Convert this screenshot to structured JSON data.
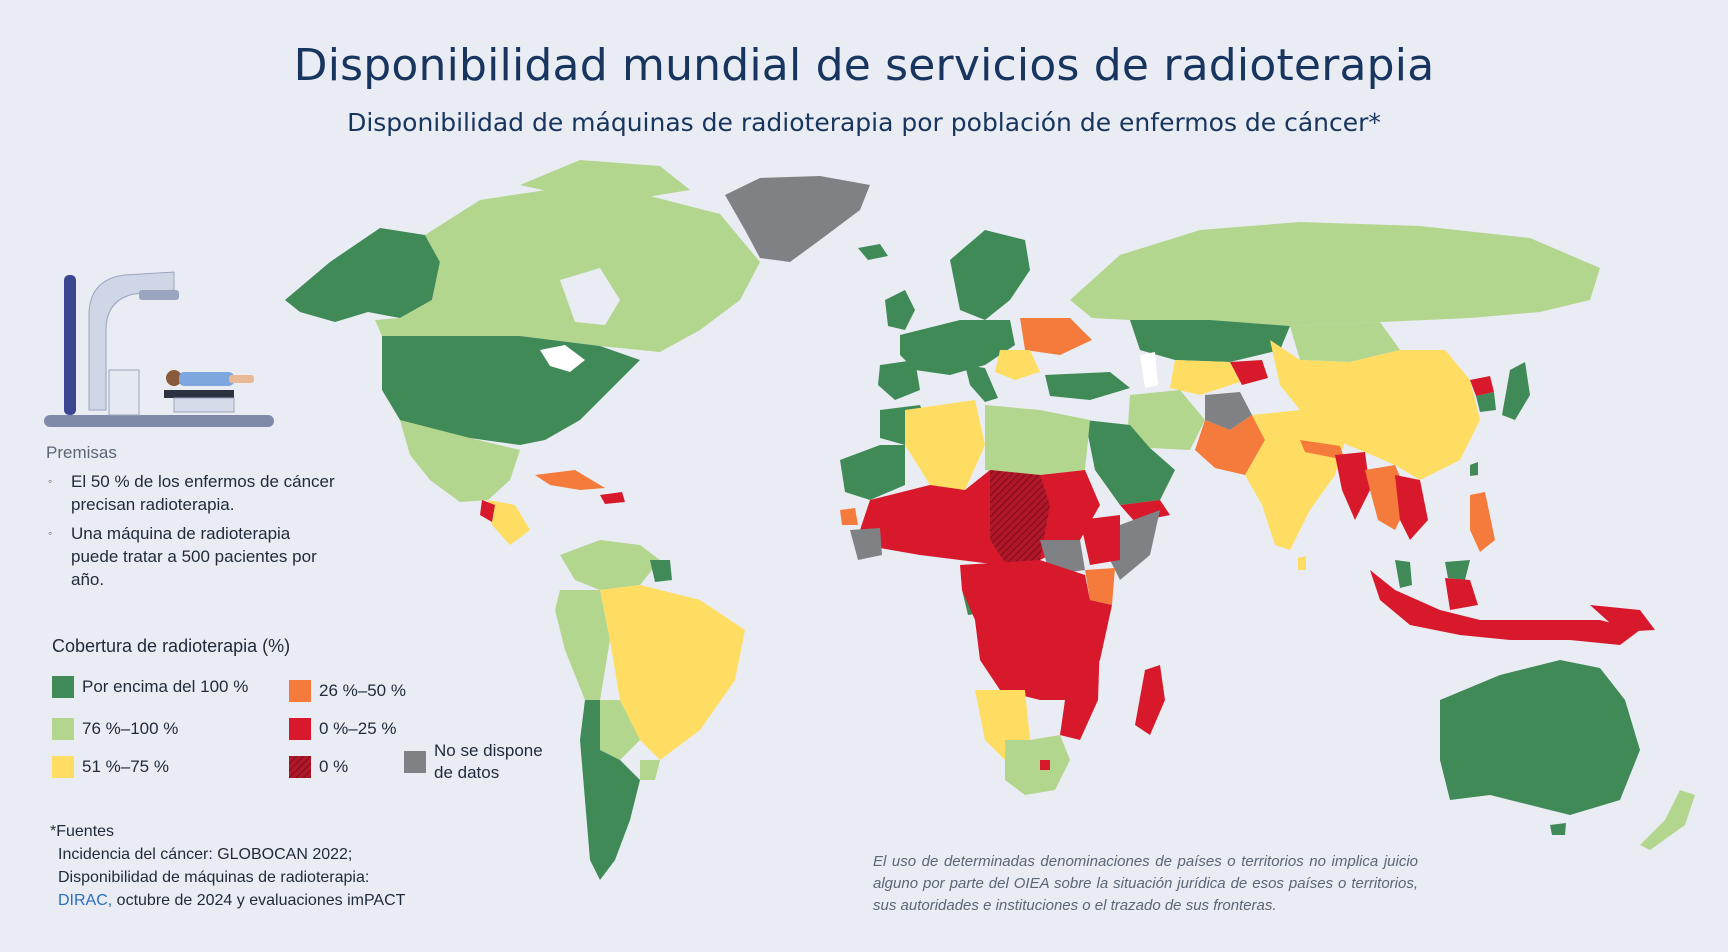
{
  "title": "Disponibilidad mundial de servicios de radioterapia",
  "subtitle": "Disponibilidad de máquinas de radioterapia por población de enfermos de cáncer*",
  "premisas": {
    "heading": "Premisas",
    "items": [
      "El 50 % de los enfermos de cáncer precisan radioterapia.",
      "Una máquina de radioterapia puede tratar a 500 pacientes por año."
    ]
  },
  "legend": {
    "title": "Cobertura de radioterapia (%)",
    "items": [
      {
        "key": "above100",
        "label": "Por encima del 100 %",
        "color": "#3f8a57"
      },
      {
        "key": "c76_100",
        "label": "76 %–100 %",
        "color": "#b3d68e"
      },
      {
        "key": "c51_75",
        "label": "51 %–75 %",
        "color": "#ffdd62"
      },
      {
        "key": "c26_50",
        "label": "26 %–50 %",
        "color": "#f47b3b"
      },
      {
        "key": "c0_25",
        "label": "0 %–25 %",
        "color": "#d8192b"
      },
      {
        "key": "zero",
        "label": "0 %",
        "color": "#9e1421"
      },
      {
        "key": "nodata",
        "label": "No se dispone de datos",
        "color": "#808184"
      }
    ]
  },
  "sources": {
    "heading": "*Fuentes",
    "line1": "Incidencia del cáncer: GLOBOCAN 2022;",
    "line2": "Disponibilidad de máquinas de radioterapia:",
    "link": "DIRAC,",
    "line3": " octubre de 2024 y evaluaciones imPACT"
  },
  "disclaimer": "El uso de determinadas denominaciones de países o territorios no implica juicio alguno por parte del OIEA sobre la situación jurídica de esos países o territorios, sus autoridades e instituciones o el trazado de sus fronteras.",
  "colors": {
    "background": "#e9ecf2",
    "title": "#17355e",
    "ocean": "#e9ecf2"
  }
}
